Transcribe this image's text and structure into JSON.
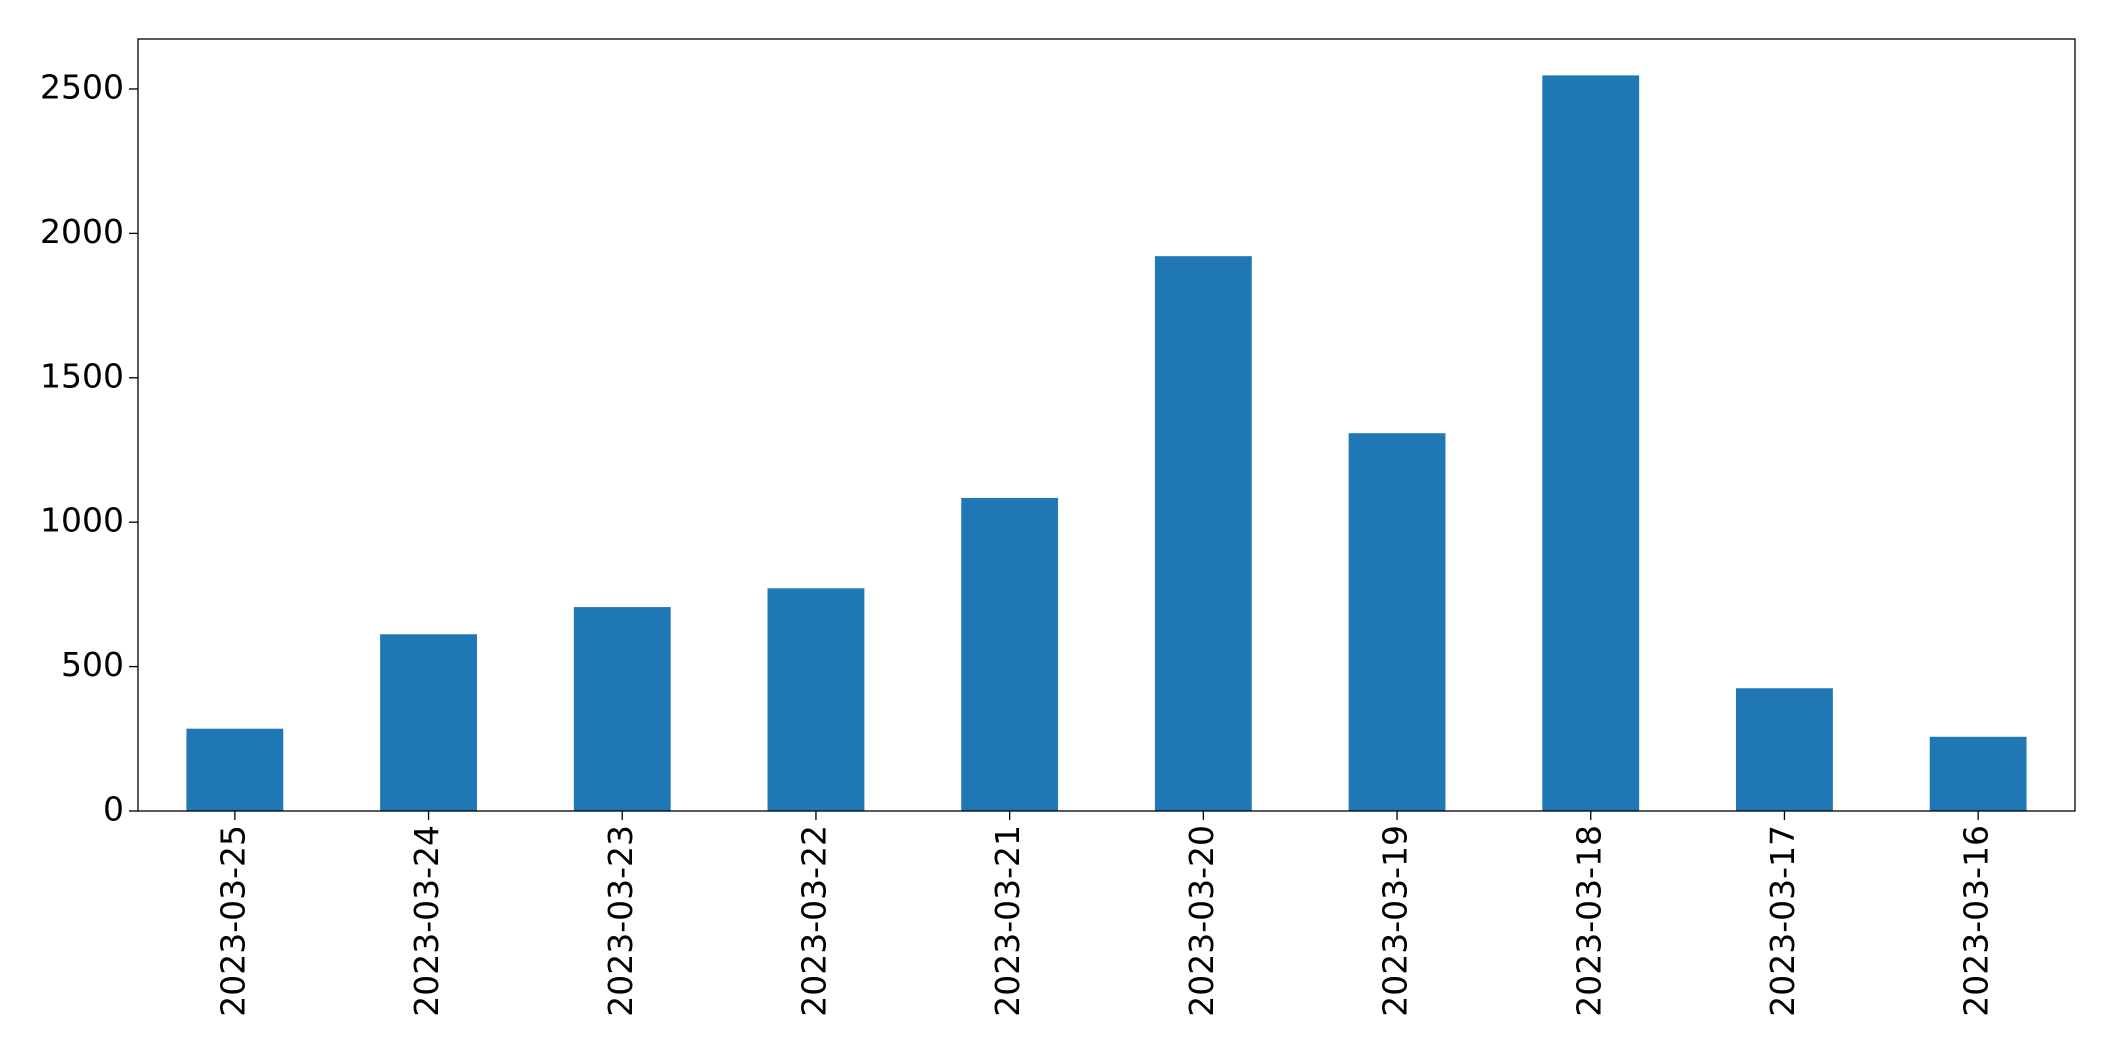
{
  "chart_data": {
    "type": "bar",
    "categories": [
      "2023-03-25",
      "2023-03-24",
      "2023-03-23",
      "2023-03-22",
      "2023-03-21",
      "2023-03-20",
      "2023-03-19",
      "2023-03-18",
      "2023-03-17",
      "2023-03-16"
    ],
    "values": [
      285,
      612,
      706,
      771,
      1084,
      1921,
      1308,
      2547,
      425,
      257
    ],
    "color": "#1f77b4",
    "ylim": [
      0,
      2673
    ],
    "yticks": [
      0,
      500,
      1000,
      1500,
      2000,
      2500
    ],
    "grid": false
  }
}
